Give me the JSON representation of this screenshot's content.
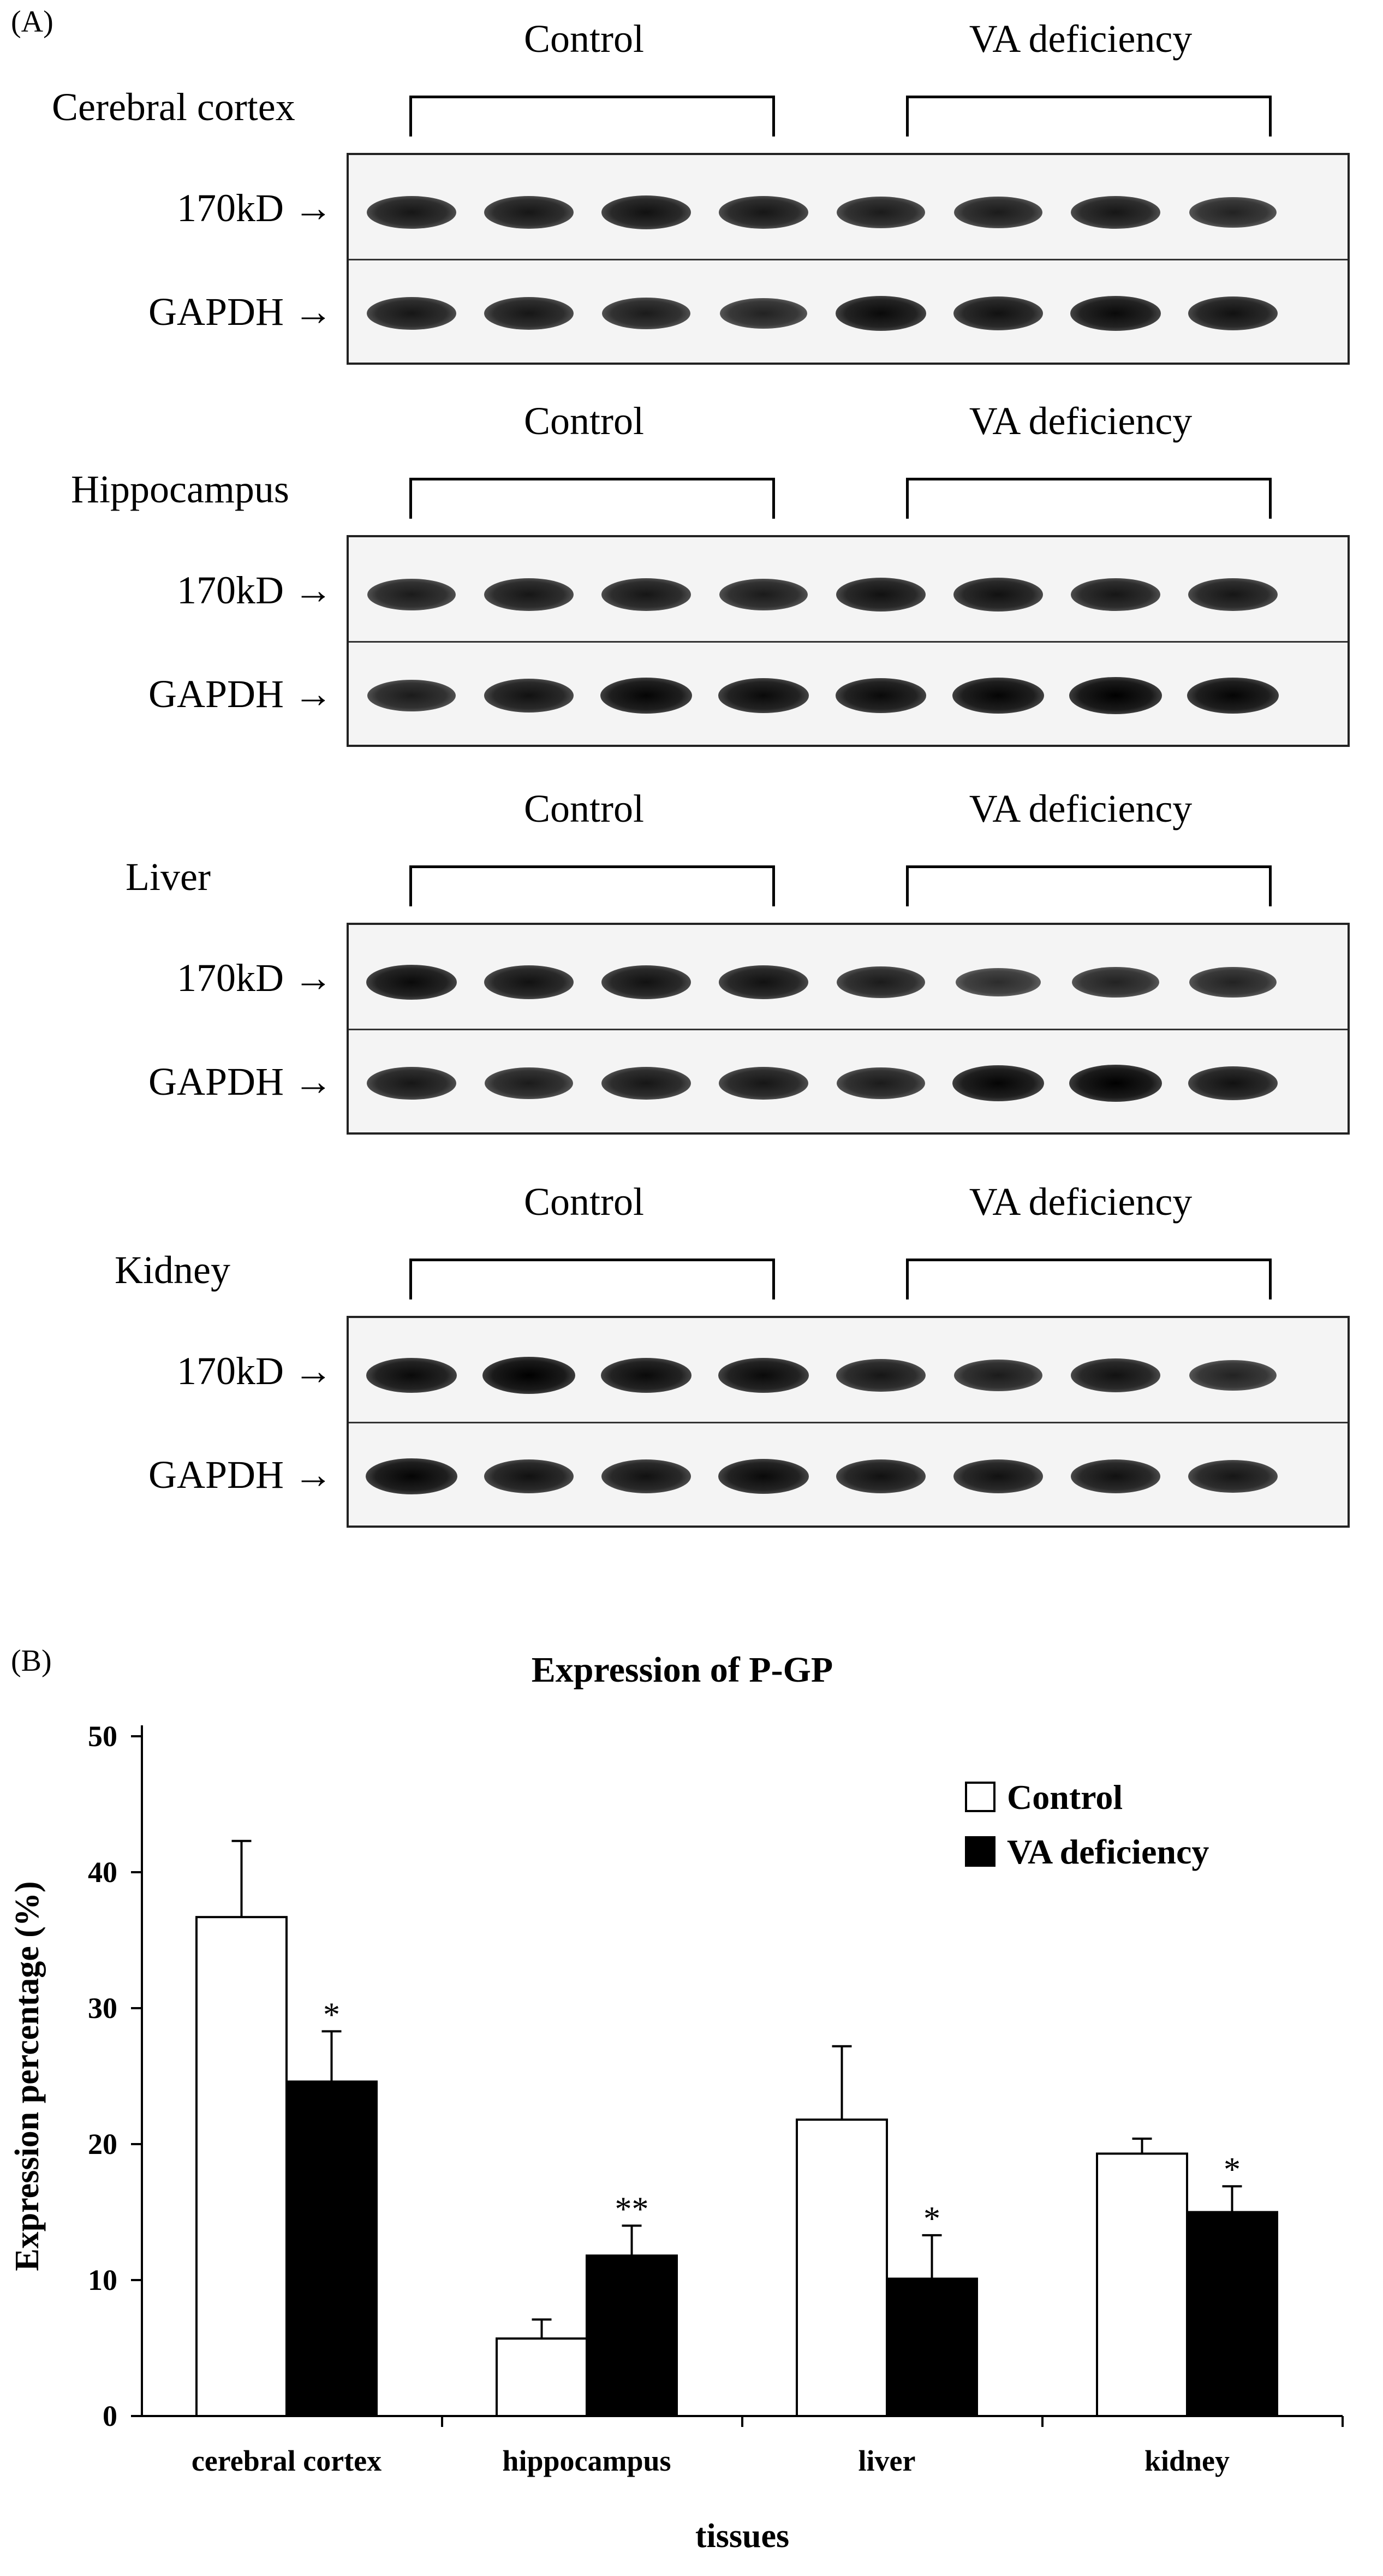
{
  "panel_a": {
    "label": "(A)",
    "band_label": "170kD",
    "loading_control_label": "GAPDH",
    "arrow": "→",
    "group_labels": [
      "Control",
      "VA deficiency"
    ],
    "blots": [
      {
        "tissue": "Cerebral cortex",
        "top_band_strength": [
          0.8,
          0.8,
          0.85,
          0.8,
          0.75,
          0.75,
          0.8,
          0.7
        ],
        "bottom_band_strength": [
          0.8,
          0.8,
          0.75,
          0.7,
          0.9,
          0.85,
          0.9,
          0.85
        ]
      },
      {
        "tissue": "Hippocampus",
        "top_band_strength": [
          0.75,
          0.8,
          0.8,
          0.75,
          0.85,
          0.85,
          0.8,
          0.8
        ],
        "bottom_band_strength": [
          0.75,
          0.85,
          0.95,
          0.9,
          0.9,
          0.95,
          1.0,
          0.95
        ]
      },
      {
        "tissue": "Liver",
        "top_band_strength": [
          0.9,
          0.85,
          0.85,
          0.85,
          0.75,
          0.6,
          0.7,
          0.7
        ],
        "bottom_band_strength": [
          0.8,
          0.75,
          0.8,
          0.8,
          0.75,
          0.95,
          1.0,
          0.85
        ]
      },
      {
        "tissue": "Kidney",
        "top_band_strength": [
          0.9,
          1.0,
          0.9,
          0.9,
          0.8,
          0.75,
          0.85,
          0.7
        ],
        "bottom_band_strength": [
          0.95,
          0.85,
          0.85,
          0.9,
          0.85,
          0.85,
          0.85,
          0.8
        ]
      }
    ]
  },
  "panel_b": {
    "label": "(B)"
  },
  "chart_data": {
    "type": "bar",
    "title": "Expression of P-GP",
    "xlabel": "tissues",
    "ylabel": "Expression percentage (%)",
    "ylim": [
      0,
      50
    ],
    "yticks": [
      0,
      10,
      20,
      30,
      40,
      50
    ],
    "categories": [
      "cerebral cortex",
      "hippocampus",
      "liver",
      "kidney"
    ],
    "series": [
      {
        "name": "Control",
        "values": [
          36.7,
          5.7,
          21.8,
          19.3
        ],
        "errors": [
          5.6,
          1.4,
          5.4,
          1.1
        ],
        "color": "#ffffff"
      },
      {
        "name": "VA deficiency",
        "values": [
          24.6,
          11.8,
          10.1,
          15.0
        ],
        "errors": [
          3.7,
          2.2,
          3.2,
          1.9
        ],
        "color": "#000000"
      }
    ],
    "significance": [
      "*",
      "**",
      "*",
      "*"
    ],
    "legend_position": "top-right",
    "grid": false
  }
}
